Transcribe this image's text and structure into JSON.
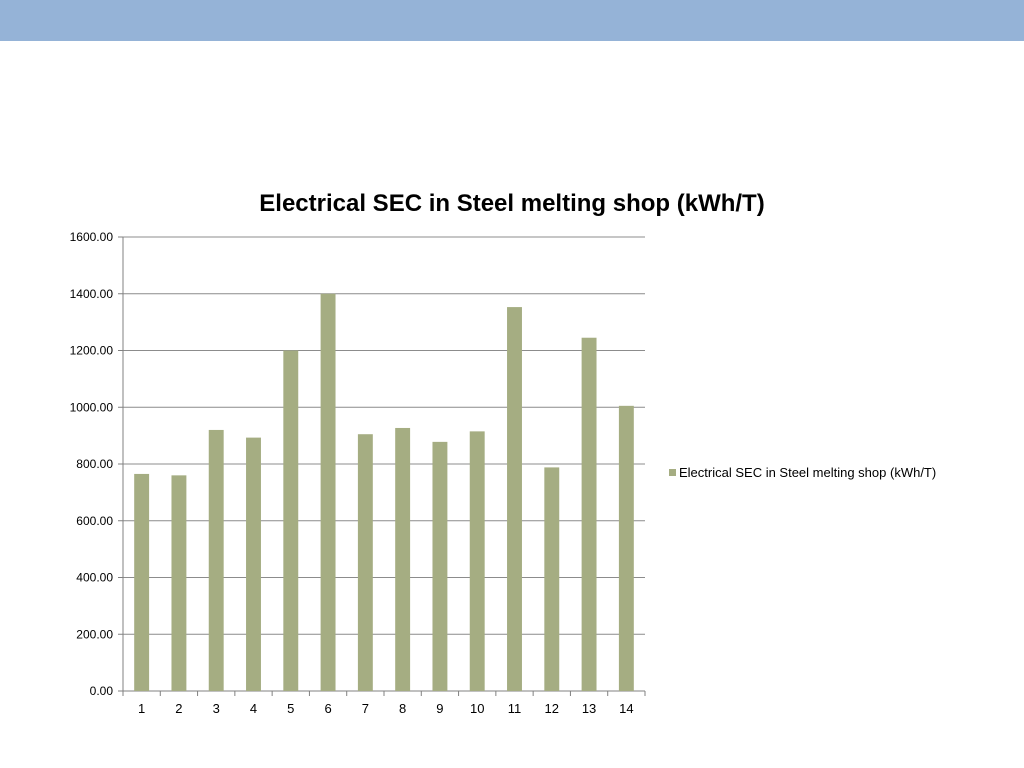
{
  "colors": {
    "top_band": "#95b3d7",
    "bar": "#a5ad82",
    "grid": "#8c8c8c",
    "axis": "#808080"
  },
  "chart_data": {
    "type": "bar",
    "title": "Electrical SEC in Steel melting shop (kWh/T)",
    "xlabel": "",
    "ylabel": "",
    "categories": [
      "1",
      "2",
      "3",
      "4",
      "5",
      "6",
      "7",
      "8",
      "9",
      "10",
      "11",
      "12",
      "13",
      "14"
    ],
    "series": [
      {
        "name": "Electrical SEC in Steel melting shop (kWh/T)",
        "values": [
          765,
          760,
          920,
          893,
          1200,
          1400,
          905,
          927,
          878,
          915,
          1353,
          788,
          1245,
          1005
        ]
      }
    ],
    "ylim": [
      0,
      1600
    ],
    "yticks": [
      0,
      200,
      400,
      600,
      800,
      1000,
      1200,
      1400,
      1600
    ],
    "ytick_labels": [
      "0.00",
      "200.00",
      "400.00",
      "600.00",
      "800.00",
      "1000.00",
      "1200.00",
      "1400.00",
      "1600.00"
    ],
    "grid": true,
    "legend_position": "right"
  }
}
